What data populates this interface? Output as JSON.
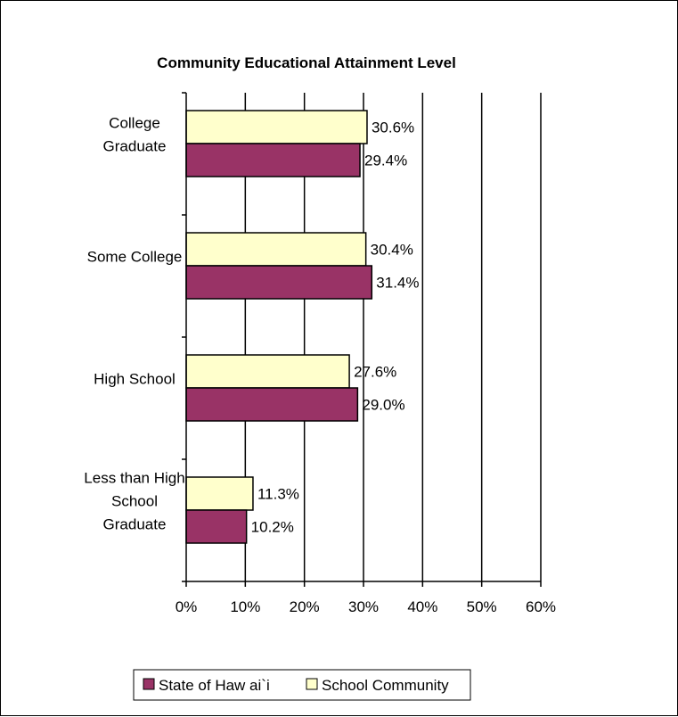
{
  "chart_data": {
    "type": "bar",
    "orientation": "horizontal",
    "title": "Community Educational Attainment Level",
    "categories": [
      "College Graduate",
      "Some College",
      "High School",
      "Less than High School Graduate"
    ],
    "category_lines": [
      [
        "College",
        "Graduate"
      ],
      [
        "Some College"
      ],
      [
        "High School"
      ],
      [
        "Less than High",
        "School",
        "Graduate"
      ]
    ],
    "series": [
      {
        "name": "State of Haw ai`i",
        "color": "#993366",
        "values": [
          29.4,
          31.4,
          29.0,
          10.2
        ],
        "labels": [
          "29.4%",
          "31.4%",
          "29.0%",
          "10.2%"
        ]
      },
      {
        "name": "School Community",
        "color": "#FFFFCC",
        "values": [
          30.6,
          30.4,
          27.6,
          11.3
        ],
        "labels": [
          "30.6%",
          "30.4%",
          "27.6%",
          "11.3%"
        ]
      }
    ],
    "xlim": [
      0,
      60
    ],
    "xticks": [
      0,
      10,
      20,
      30,
      40,
      50,
      60
    ],
    "xtick_labels": [
      "0%",
      "10%",
      "20%",
      "30%",
      "40%",
      "50%",
      "60%"
    ],
    "grid": "vertical",
    "legend": "bottom",
    "xlabel": "",
    "ylabel": ""
  }
}
